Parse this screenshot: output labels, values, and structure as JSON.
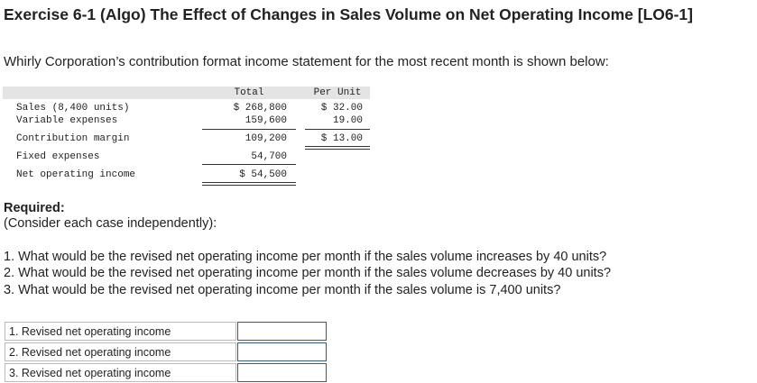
{
  "header": {
    "title": "Exercise 6-1 (Algo) The Effect of Changes in Sales Volume on Net Operating Income [LO6-1]"
  },
  "intro": "Whirly Corporation’s contribution format income statement for the most recent month is shown below:",
  "statement": {
    "columns": [
      "Total",
      "Per Unit"
    ],
    "rows": [
      {
        "label": "Sales (8,400 units)",
        "total": "$ 268,800",
        "per_unit": "$ 32.00"
      },
      {
        "label": "Variable expenses",
        "total": "159,600",
        "per_unit": "19.00"
      },
      {
        "label": "Contribution margin",
        "total": "109,200",
        "per_unit": "$ 13.00"
      },
      {
        "label": "Fixed expenses",
        "total": "54,700"
      },
      {
        "label": "Net operating income",
        "total": "$ 54,500"
      }
    ]
  },
  "required": {
    "heading": "Required:",
    "note": "(Consider each case independently):"
  },
  "questions": [
    "1. What would be the revised net operating income per month if the sales volume increases by 40 units?",
    "2. What would be the revised net operating income per month if the sales volume decreases by 40 units?",
    "3. What would be the revised net operating income per month if the sales volume is 7,400 units?"
  ],
  "answers": [
    "1. Revised net operating income",
    "2. Revised net operating income",
    "3. Revised net operating income"
  ]
}
